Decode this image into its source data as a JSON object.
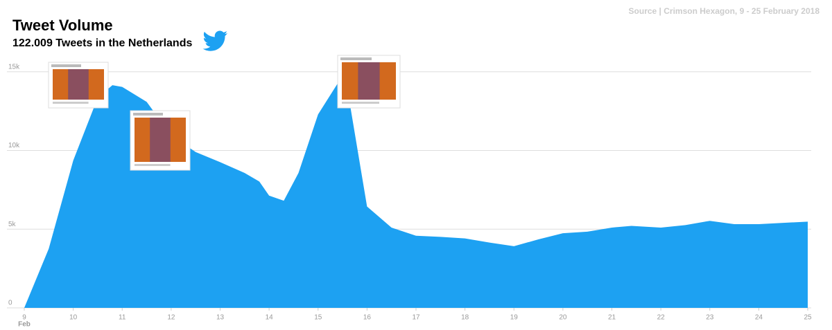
{
  "chart_data": {
    "type": "area",
    "title": "Tweet Volume",
    "subtitle": "122.009 Tweets in the Netherlands",
    "source": "Source | Crimson Hexagon, 9 - 25 February 2018",
    "color": "#1da1f2",
    "x": [
      9,
      9.5,
      10,
      10.5,
      10.8,
      11,
      11.5,
      12,
      12.5,
      13,
      13.5,
      13.8,
      14,
      14.3,
      14.6,
      15,
      15.4,
      15.6,
      16,
      16.5,
      17,
      17.5,
      18,
      18.5,
      19,
      19.5,
      20,
      20.5,
      21,
      21.4,
      22,
      22.5,
      23,
      23.5,
      24,
      25
    ],
    "values": [
      0,
      3760,
      9360,
      13350,
      14150,
      14040,
      13090,
      10960,
      9900,
      9260,
      8570,
      8030,
      7130,
      6810,
      8570,
      12290,
      14260,
      13880,
      6440,
      5100,
      4580,
      4510,
      4410,
      4150,
      3920,
      4350,
      4740,
      4840,
      5100,
      5210,
      5100,
      5260,
      5530,
      5320,
      5320,
      5480
    ],
    "xlim": [
      9,
      25
    ],
    "xticks": [
      9,
      10,
      11,
      12,
      13,
      14,
      15,
      16,
      17,
      18,
      19,
      20,
      21,
      22,
      23,
      24,
      25
    ],
    "x_tick_sublabel": "Feb",
    "ylim": [
      0,
      16000
    ],
    "yticks": [
      0,
      {
        "value": 5000,
        "label": "5k"
      },
      {
        "value": 10000,
        "label": "10k"
      },
      {
        "value": 15000,
        "label": "15k"
      }
    ],
    "grid": true
  }
}
